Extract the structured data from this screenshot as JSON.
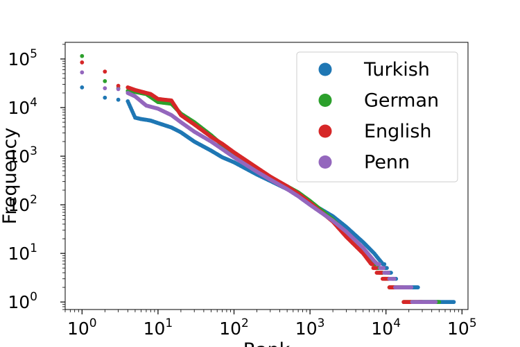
{
  "chart_data": {
    "type": "scatter",
    "xlabel": "Rank",
    "ylabel": "Frequency",
    "x_scale": "log",
    "y_scale": "log",
    "xlim": [
      0.6,
      120000
    ],
    "ylim": [
      0.7,
      220000
    ],
    "x_ticks": [
      {
        "value": 1,
        "base": "10",
        "exp": "0"
      },
      {
        "value": 10,
        "base": "10",
        "exp": "1"
      },
      {
        "value": 100,
        "base": "10",
        "exp": "2"
      },
      {
        "value": 1000,
        "base": "10",
        "exp": "3"
      },
      {
        "value": 10000,
        "base": "10",
        "exp": "4"
      },
      {
        "value": 100000,
        "base": "10",
        "exp": "5"
      }
    ],
    "y_ticks": [
      {
        "value": 1,
        "base": "10",
        "exp": "0"
      },
      {
        "value": 10,
        "base": "10",
        "exp": "1"
      },
      {
        "value": 100,
        "base": "10",
        "exp": "2"
      },
      {
        "value": 1000,
        "base": "10",
        "exp": "3"
      },
      {
        "value": 10000,
        "base": "10",
        "exp": "4"
      },
      {
        "value": 100000,
        "base": "10",
        "exp": "5"
      }
    ],
    "legend_position": "top-right",
    "grid": false,
    "series": [
      {
        "name": "Turkish",
        "color": "#1f77b4",
        "points": [
          [
            1,
            26000
          ],
          [
            2,
            16000
          ],
          [
            3,
            14500
          ],
          [
            4,
            13500
          ],
          [
            5,
            6200
          ],
          [
            6,
            5800
          ],
          [
            7,
            5600
          ],
          [
            8,
            5400
          ],
          [
            10,
            4800
          ],
          [
            15,
            3900
          ],
          [
            20,
            3100
          ],
          [
            30,
            2000
          ],
          [
            50,
            1300
          ],
          [
            70,
            950
          ],
          [
            100,
            750
          ],
          [
            200,
            420
          ],
          [
            300,
            310
          ],
          [
            500,
            210
          ],
          [
            700,
            160
          ],
          [
            1000,
            110
          ],
          [
            2000,
            58
          ],
          [
            3000,
            35
          ],
          [
            5000,
            17
          ],
          [
            7000,
            10
          ],
          [
            10000,
            5
          ],
          [
            15000,
            2
          ],
          [
            20000,
            2
          ],
          [
            25000,
            2
          ],
          [
            30000,
            1
          ],
          [
            50000,
            1
          ],
          [
            78000,
            1
          ]
        ]
      },
      {
        "name": "German",
        "color": "#2ca02c",
        "points": [
          [
            1,
            115000
          ],
          [
            2,
            35000
          ],
          [
            3,
            25000
          ],
          [
            4,
            22000
          ],
          [
            5,
            21000
          ],
          [
            7,
            19000
          ],
          [
            10,
            13000
          ],
          [
            15,
            12000
          ],
          [
            20,
            7500
          ],
          [
            30,
            5000
          ],
          [
            50,
            2700
          ],
          [
            70,
            1700
          ],
          [
            100,
            1100
          ],
          [
            200,
            550
          ],
          [
            300,
            370
          ],
          [
            500,
            240
          ],
          [
            700,
            180
          ],
          [
            1000,
            120
          ],
          [
            2000,
            50
          ],
          [
            3000,
            26
          ],
          [
            5000,
            11
          ],
          [
            7000,
            6
          ],
          [
            10000,
            3
          ],
          [
            12000,
            2
          ],
          [
            15000,
            2
          ],
          [
            20000,
            1
          ],
          [
            30000,
            1
          ],
          [
            50000,
            1
          ]
        ]
      },
      {
        "name": "English",
        "color": "#d62728",
        "points": [
          [
            1,
            85000
          ],
          [
            2,
            55000
          ],
          [
            3,
            28000
          ],
          [
            4,
            26000
          ],
          [
            5,
            23000
          ],
          [
            7,
            20000
          ],
          [
            8,
            19000
          ],
          [
            10,
            15000
          ],
          [
            15,
            14000
          ],
          [
            20,
            7000
          ],
          [
            30,
            4500
          ],
          [
            50,
            2500
          ],
          [
            70,
            1800
          ],
          [
            100,
            1200
          ],
          [
            200,
            580
          ],
          [
            300,
            380
          ],
          [
            500,
            240
          ],
          [
            700,
            170
          ],
          [
            1000,
            110
          ],
          [
            2000,
            45
          ],
          [
            3000,
            22
          ],
          [
            5000,
            10
          ],
          [
            7000,
            5
          ],
          [
            10000,
            3
          ],
          [
            12000,
            2
          ],
          [
            15000,
            2
          ],
          [
            20000,
            1
          ],
          [
            30000,
            1
          ]
        ]
      },
      {
        "name": "Penn",
        "color": "#9467bd",
        "points": [
          [
            1,
            53000
          ],
          [
            2,
            25000
          ],
          [
            3,
            24000
          ],
          [
            4,
            20000
          ],
          [
            5,
            17000
          ],
          [
            7,
            11000
          ],
          [
            10,
            9500
          ],
          [
            15,
            7000
          ],
          [
            20,
            5000
          ],
          [
            30,
            3200
          ],
          [
            50,
            2000
          ],
          [
            70,
            1400
          ],
          [
            100,
            950
          ],
          [
            200,
            480
          ],
          [
            300,
            330
          ],
          [
            500,
            210
          ],
          [
            700,
            150
          ],
          [
            1000,
            100
          ],
          [
            2000,
            47
          ],
          [
            3000,
            28
          ],
          [
            5000,
            13
          ],
          [
            7000,
            7
          ],
          [
            10000,
            4
          ],
          [
            15000,
            2
          ],
          [
            20000,
            2
          ],
          [
            25000,
            1
          ],
          [
            30000,
            1
          ],
          [
            45000,
            1
          ]
        ]
      }
    ]
  }
}
